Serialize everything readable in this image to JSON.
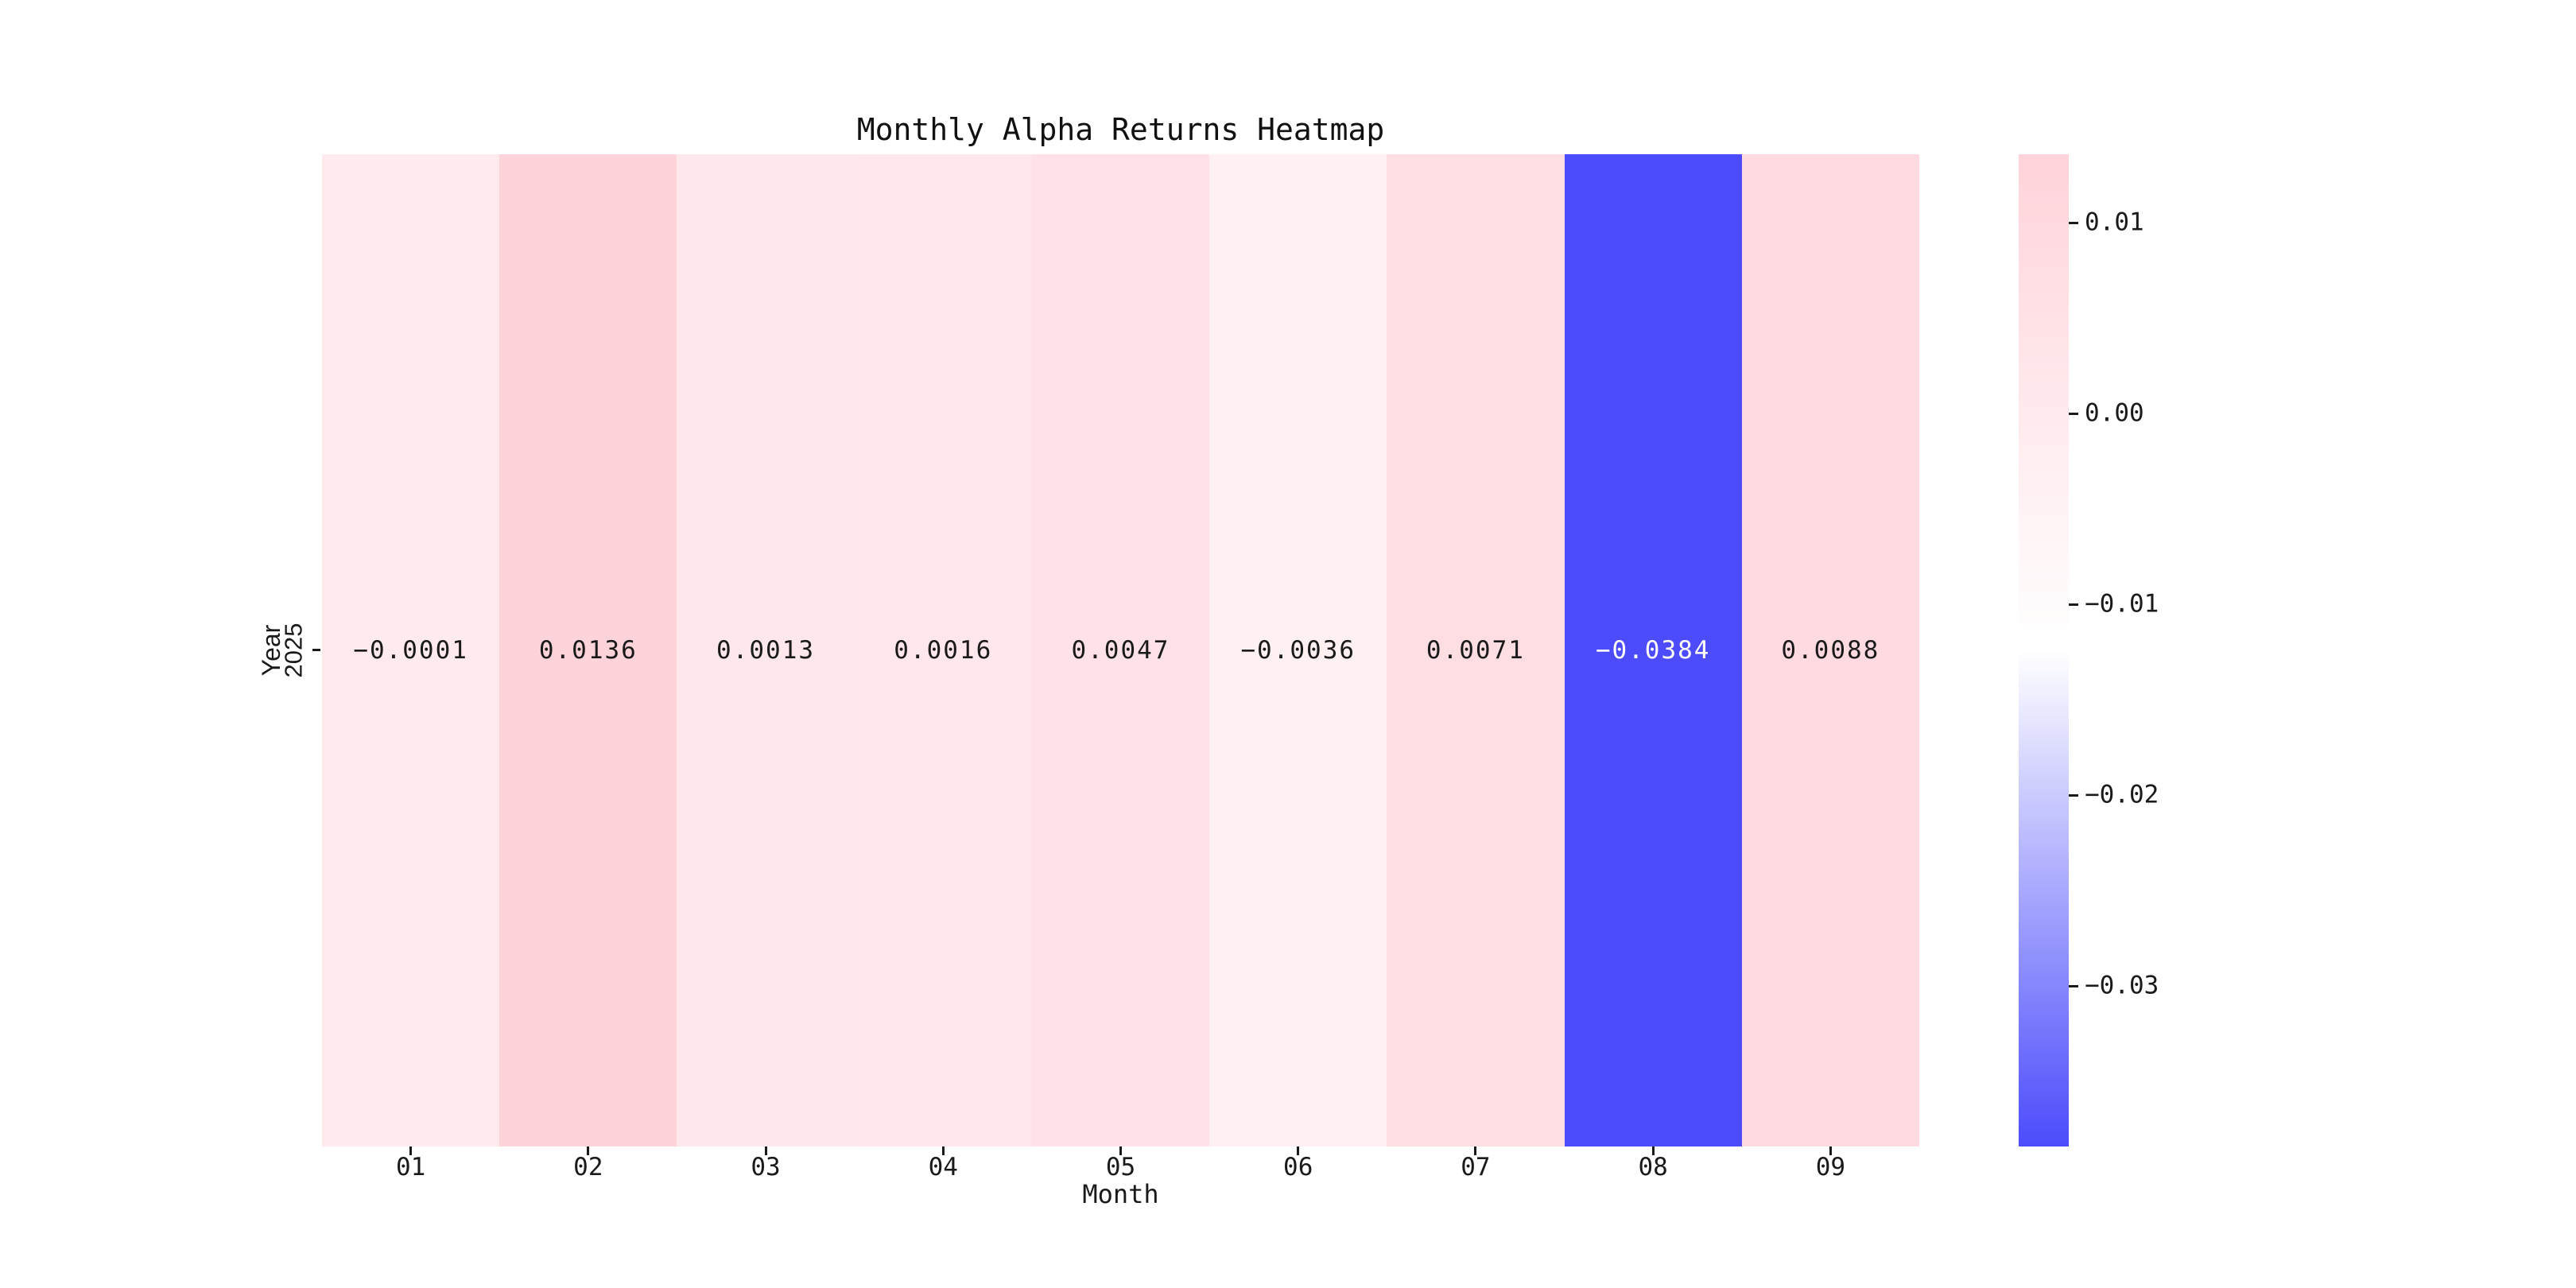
{
  "figure": {
    "background": "#ffffff"
  },
  "chart_data": {
    "type": "heatmap",
    "title": "Monthly Alpha Returns Heatmap",
    "xlabel": "Month",
    "ylabel": "Year",
    "x_categories": [
      "01",
      "02",
      "03",
      "04",
      "05",
      "06",
      "07",
      "08",
      "09"
    ],
    "y_categories": [
      "2025"
    ],
    "values": [
      [
        -0.0001,
        0.0136,
        0.0013,
        0.0016,
        0.0047,
        -0.0036,
        0.0071,
        -0.0384,
        0.0088
      ]
    ],
    "value_labels": [
      [
        "−0.0001",
        "0.0136",
        "0.0013",
        "0.0016",
        "0.0047",
        "−0.0036",
        "0.0071",
        "−0.0384",
        "0.0088"
      ]
    ],
    "vmin": -0.0384,
    "vmax": 0.0136,
    "colorbar_ticks": [
      {
        "value": 0.01,
        "label": "0.01"
      },
      {
        "value": 0.0,
        "label": "0.00"
      },
      {
        "value": -0.01,
        "label": "−0.01"
      },
      {
        "value": -0.02,
        "label": "−0.02"
      },
      {
        "value": -0.03,
        "label": "−0.03"
      }
    ],
    "colorbar_position": "right",
    "grid": false,
    "colors": {
      "high": "#ffd3da",
      "mid": "#ffffff",
      "low": "#4c4cfc",
      "text_dark": "#1a1a1a",
      "text_light": "#ffffff"
    }
  }
}
